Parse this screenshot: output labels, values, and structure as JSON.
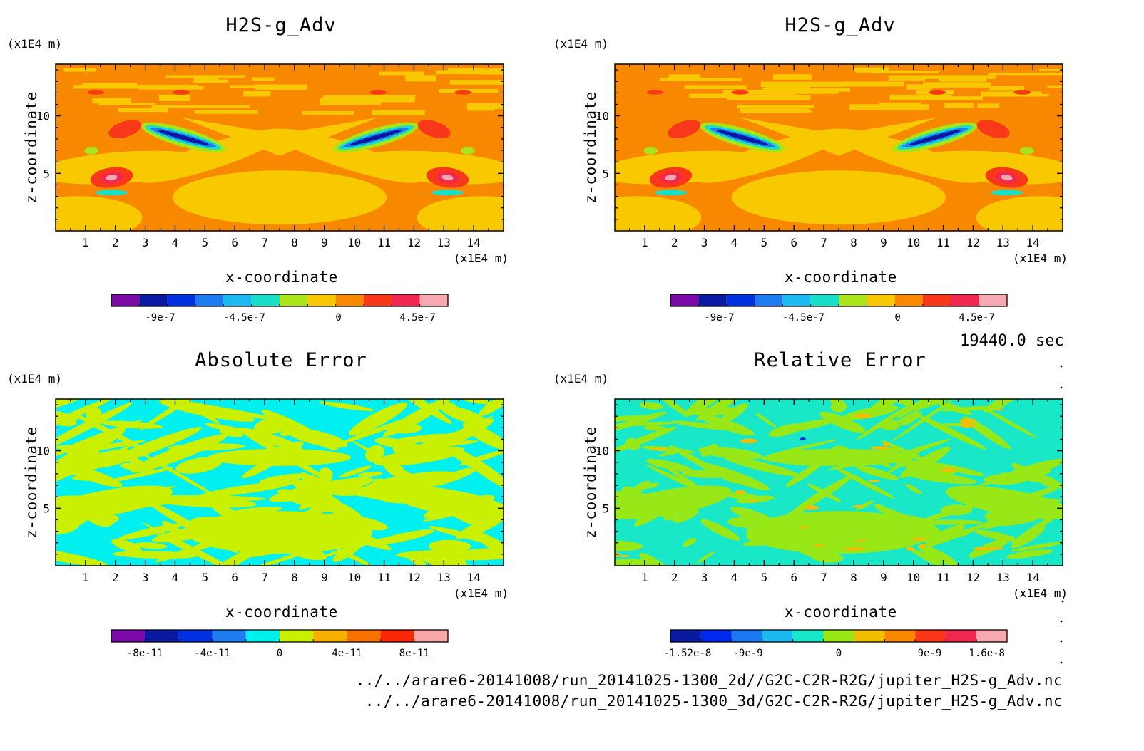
{
  "time_label": "19440.0 sec",
  "footer": {
    "file_2d": "../../arare6-20141008/run_20141025-1300_2d//G2C-C2R-R2G/jupiter_H2S-g_Adv.nc",
    "file_3d": "../../arare6-20141008/run_20141025-1300_3d/G2C-C2R-R2G/jupiter_H2S-g_Adv.nc"
  },
  "panels": [
    {
      "title": "H2S-g_Adv",
      "xlabel": "x-coordinate",
      "ylabel": "z-coordinate",
      "xunit": "(x1E4 m)",
      "yunit": "(x1E4 m)"
    },
    {
      "title": "H2S-g_Adv",
      "xlabel": "x-coordinate",
      "ylabel": "z-coordinate",
      "xunit": "(x1E4 m)",
      "yunit": "(x1E4 m)"
    },
    {
      "title": "Absolute Error",
      "xlabel": "x-coordinate",
      "ylabel": "z-coordinate",
      "xunit": "(x1E4 m)",
      "yunit": "(x1E4 m)"
    },
    {
      "title": "Relative Error",
      "xlabel": "x-coordinate",
      "ylabel": "z-coordinate",
      "xunit": "(x1E4 m)",
      "yunit": "(x1E4 m)"
    }
  ],
  "chart_data": [
    {
      "type": "heatmap",
      "title": "H2S-g_Adv",
      "xlabel": "x-coordinate",
      "ylabel": "z-coordinate",
      "xlim": [
        0,
        15
      ],
      "ylim": [
        0,
        14.5
      ],
      "xticks": [
        "1",
        "2",
        "3",
        "4",
        "5",
        "6",
        "7",
        "8",
        "9",
        "10",
        "11",
        "12",
        "13",
        "14"
      ],
      "yticks": [
        "5",
        "10"
      ],
      "colorbar": {
        "labels": [
          "-9e-7",
          "-4.5e-7",
          "0",
          "4.5e-7"
        ],
        "colors": [
          "#7c0aa8",
          "#0a1aa0",
          "#0030e0",
          "#1c7cf0",
          "#1cb8f0",
          "#18e0c8",
          "#a8e418",
          "#f8c800",
          "#f88800",
          "#f83818",
          "#f02850",
          "#f8a8b0"
        ]
      }
    },
    {
      "type": "heatmap",
      "title": "H2S-g_Adv",
      "xlabel": "x-coordinate",
      "ylabel": "z-coordinate",
      "xlim": [
        0,
        15
      ],
      "ylim": [
        0,
        14.5
      ],
      "xticks": [
        "1",
        "2",
        "3",
        "4",
        "5",
        "6",
        "7",
        "8",
        "9",
        "10",
        "11",
        "12",
        "13",
        "14"
      ],
      "yticks": [
        "5",
        "10"
      ],
      "colorbar": {
        "labels": [
          "-9e-7",
          "-4.5e-7",
          "0",
          "4.5e-7"
        ],
        "colors": [
          "#7c0aa8",
          "#0a1aa0",
          "#0030e0",
          "#1c7cf0",
          "#1cb8f0",
          "#18e0c8",
          "#a8e418",
          "#f8c800",
          "#f88800",
          "#f83818",
          "#f02850",
          "#f8a8b0"
        ]
      }
    },
    {
      "type": "heatmap",
      "title": "Absolute Error",
      "xlabel": "x-coordinate",
      "ylabel": "z-coordinate",
      "xlim": [
        0,
        15
      ],
      "ylim": [
        0,
        14.5
      ],
      "xticks": [
        "1",
        "2",
        "3",
        "4",
        "5",
        "6",
        "7",
        "8",
        "9",
        "10",
        "11",
        "12",
        "13",
        "14"
      ],
      "yticks": [
        "5",
        "10"
      ],
      "colorbar": {
        "labels": [
          "-8e-11",
          "-4e-11",
          "0",
          "4e-11",
          "8e-11"
        ],
        "colors": [
          "#7c0aa8",
          "#0a1aa0",
          "#0030e0",
          "#1c7cf0",
          "#00f0f0",
          "#c8f000",
          "#f8b000",
          "#f87000",
          "#f82808",
          "#f8a8a8"
        ]
      }
    },
    {
      "type": "heatmap",
      "title": "Relative Error",
      "xlabel": "x-coordinate",
      "ylabel": "z-coordinate",
      "xlim": [
        0,
        15
      ],
      "ylim": [
        0,
        14.5
      ],
      "xticks": [
        "1",
        "2",
        "3",
        "4",
        "5",
        "6",
        "7",
        "8",
        "9",
        "10",
        "11",
        "12",
        "13",
        "14"
      ],
      "yticks": [
        "5",
        "10"
      ],
      "colorbar": {
        "labels": [
          "-1.52e-8",
          "-9e-9",
          "0",
          "9e-9",
          "1.6e-8"
        ],
        "colors": [
          "#0a1aa0",
          "#0028e8",
          "#1c78f0",
          "#1cb8f0",
          "#18e8c8",
          "#98e818",
          "#f0c000",
          "#f88800",
          "#f83818",
          "#f02850",
          "#f8a8b0"
        ]
      }
    }
  ]
}
